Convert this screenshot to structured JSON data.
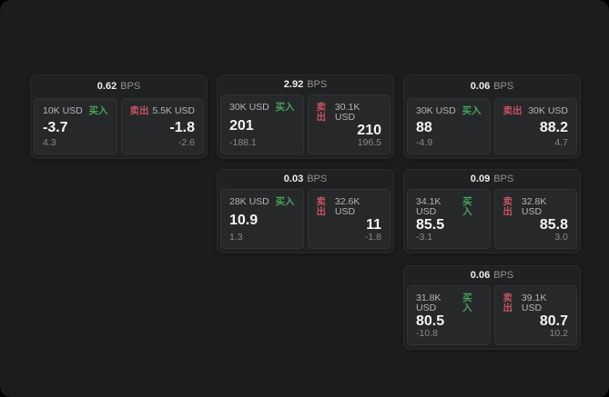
{
  "labels": {
    "bps_unit": "BPS",
    "buy": "买入",
    "sell": "卖出"
  },
  "colors": {
    "background": "#000000",
    "surface": "#1b1c1d",
    "card": "#202122",
    "panel": "#27282a",
    "buy_green": "#46a35c",
    "sell_red": "#c4535f",
    "price_text": "#f3f4f5",
    "muted_text": "#87898b"
  },
  "cards": [
    {
      "bps": "0.62",
      "buy": {
        "volume": "10K USD",
        "price": "-3.7",
        "change": "4.3"
      },
      "sell": {
        "volume": "5.5K USD",
        "price": "-1.8",
        "change": "-2.6"
      }
    },
    {
      "bps": "2.92",
      "buy": {
        "volume": "30K USD",
        "price": "201",
        "change": "-188.1"
      },
      "sell": {
        "volume": "30.1K USD",
        "price": "210",
        "change": "196.5"
      }
    },
    {
      "bps": "0.06",
      "buy": {
        "volume": "30K USD",
        "price": "88",
        "change": "-4.9"
      },
      "sell": {
        "volume": "30K USD",
        "price": "88.2",
        "change": "4.7"
      }
    },
    {
      "bps": "0.03",
      "buy": {
        "volume": "28K USD",
        "price": "10.9",
        "change": "1.3"
      },
      "sell": {
        "volume": "32.6K USD",
        "price": "11",
        "change": "-1.8"
      }
    },
    {
      "bps": "0.09",
      "buy": {
        "volume": "34.1K USD",
        "price": "85.5",
        "change": "-3.1"
      },
      "sell": {
        "volume": "32.8K USD",
        "price": "85.8",
        "change": "3.0"
      }
    },
    {
      "bps": "0.06",
      "buy": {
        "volume": "31.8K USD",
        "price": "80.5",
        "change": "-10.8"
      },
      "sell": {
        "volume": "39.1K USD",
        "price": "80.7",
        "change": "10.2"
      }
    }
  ]
}
